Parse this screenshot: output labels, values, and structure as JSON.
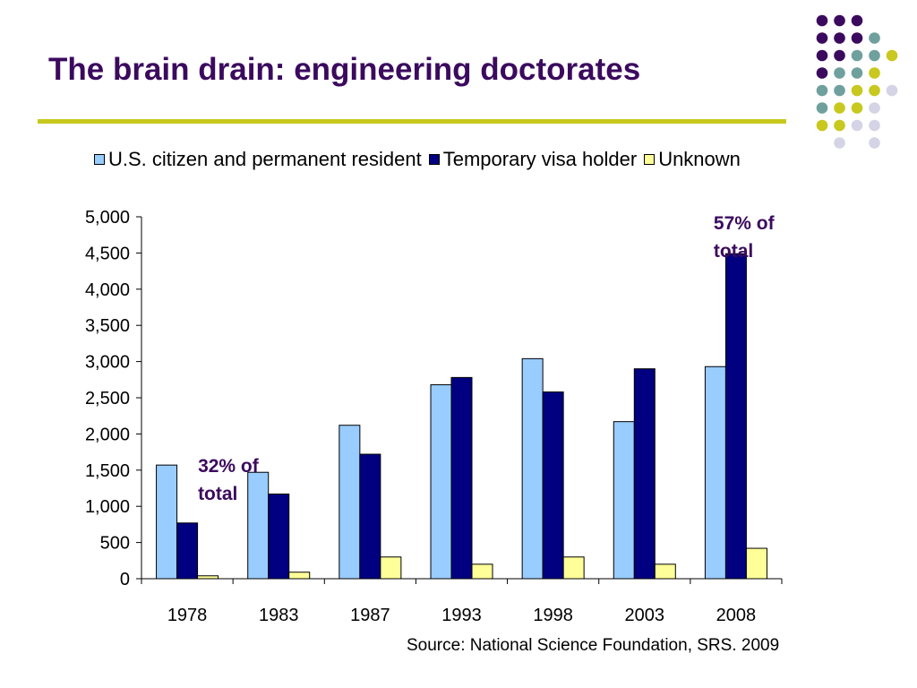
{
  "slide": {
    "title": "The brain drain: engineering doctorates",
    "source": "Source: National Science Foundation, SRS. 2009"
  },
  "colors": {
    "title": "#3b0a5e",
    "rule": "#c8c81e",
    "dot_dark_purple": "#3b0a5e",
    "dot_teal": "#6fa09e",
    "dot_yellow": "#c8c81e",
    "dot_lavender": "#d4d4e6"
  },
  "dot_grid": [
    [
      "dark_purple",
      "dark_purple",
      "dark_purple",
      null,
      null
    ],
    [
      "dark_purple",
      "dark_purple",
      "dark_purple",
      "teal",
      null
    ],
    [
      "dark_purple",
      "dark_purple",
      "teal",
      "teal",
      "yellow"
    ],
    [
      "dark_purple",
      "teal",
      "teal",
      "yellow",
      null
    ],
    [
      "teal",
      "teal",
      "yellow",
      "yellow",
      "lavender"
    ],
    [
      "teal",
      "yellow",
      "yellow",
      "lavender",
      null
    ],
    [
      "yellow",
      "yellow",
      "lavender",
      "lavender",
      null
    ],
    [
      null,
      "lavender",
      null,
      "lavender",
      null
    ]
  ],
  "annotations": [
    {
      "name": "annotation-1978",
      "category": "1978",
      "lines": [
        "32% of",
        "total"
      ]
    },
    {
      "name": "annotation-2008",
      "category": "2008",
      "lines": [
        "57% of",
        "total"
      ]
    }
  ],
  "chart_data": {
    "type": "bar",
    "title": "",
    "xlabel": "",
    "ylabel": "",
    "categories": [
      "1978",
      "1983",
      "1987",
      "1993",
      "1998",
      "2003",
      "2008"
    ],
    "series": [
      {
        "name": "U.S. citizen and permanent resident",
        "color": "#99ccff",
        "values": [
          1570,
          1470,
          2120,
          2680,
          3040,
          2170,
          2930
        ]
      },
      {
        "name": "Temporary visa holder",
        "color": "#000080",
        "values": [
          770,
          1170,
          1720,
          2780,
          2580,
          2900,
          4490
        ]
      },
      {
        "name": "Unknown",
        "color": "#ffff99",
        "values": [
          40,
          90,
          300,
          200,
          300,
          200,
          420
        ]
      }
    ],
    "ylim": [
      0,
      5000
    ],
    "yticks": [
      0,
      500,
      1000,
      1500,
      2000,
      2500,
      3000,
      3500,
      4000,
      4500,
      5000
    ],
    "ytick_labels": [
      "0",
      "500",
      "1,000",
      "1,500",
      "2,000",
      "2,500",
      "3,000",
      "3,500",
      "4,000",
      "4,500",
      "5,000"
    ],
    "grid": false,
    "legend": "top"
  }
}
